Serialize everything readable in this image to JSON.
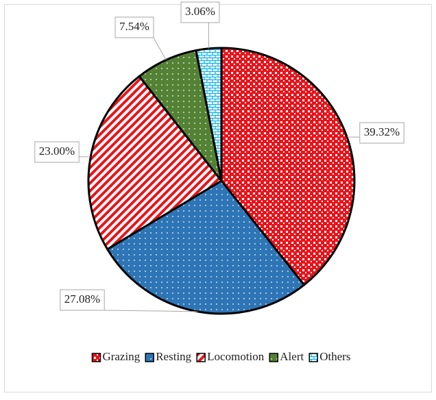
{
  "chart_data": {
    "type": "pie",
    "categories": [
      "Grazing",
      "Resting",
      "Locomotion",
      "Alert",
      "Others"
    ],
    "values": [
      39.32,
      27.08,
      23.0,
      7.54,
      3.06
    ],
    "value_labels": [
      "39.32%",
      "27.08%",
      "23.00%",
      "7.54%",
      "3.06%"
    ],
    "colors": [
      "#e8141b",
      "#2e75b6",
      "#e8141b",
      "#548235",
      "#00b0f0"
    ],
    "patterns": [
      "checker",
      "dots",
      "stripes",
      "dots",
      "bricks"
    ],
    "legend": "bottom"
  }
}
